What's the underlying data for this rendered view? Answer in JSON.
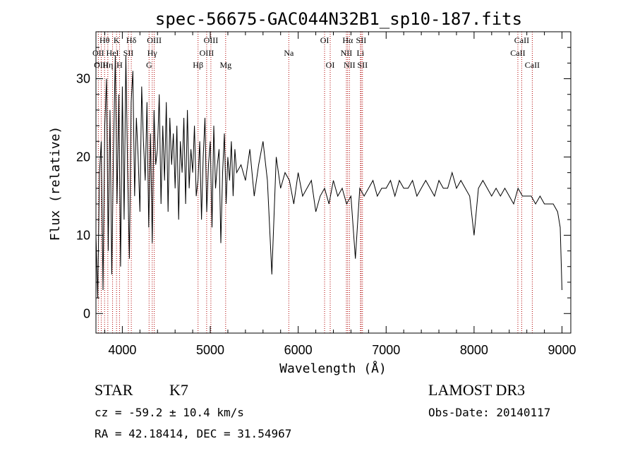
{
  "chart_data": {
    "type": "line",
    "title": "spec-56675-GAC044N32B1_sp10-187.fits",
    "xlabel": "Wavelength (Å)",
    "ylabel": "Flux (relative)",
    "xlim": [
      3700,
      9100
    ],
    "ylim": [
      -2.5,
      36
    ],
    "xticks": [
      4000,
      5000,
      6000,
      7000,
      8000,
      9000
    ],
    "yticks": [
      0,
      10,
      20,
      30
    ],
    "grid": false,
    "line_color": "#000000",
    "marker_color": "#b00000",
    "spectrum": {
      "x": [
        3700,
        3720,
        3740,
        3760,
        3780,
        3800,
        3820,
        3840,
        3860,
        3880,
        3900,
        3920,
        3940,
        3960,
        3980,
        4000,
        4020,
        4040,
        4060,
        4080,
        4100,
        4120,
        4140,
        4160,
        4180,
        4200,
        4220,
        4240,
        4260,
        4280,
        4300,
        4320,
        4340,
        4360,
        4380,
        4400,
        4420,
        4440,
        4460,
        4480,
        4500,
        4520,
        4540,
        4560,
        4580,
        4600,
        4620,
        4640,
        4660,
        4680,
        4700,
        4720,
        4740,
        4760,
        4780,
        4800,
        4820,
        4840,
        4860,
        4880,
        4900,
        4920,
        4940,
        4960,
        4980,
        5000,
        5020,
        5040,
        5060,
        5080,
        5100,
        5120,
        5140,
        5160,
        5180,
        5200,
        5220,
        5240,
        5260,
        5280,
        5300,
        5350,
        5400,
        5450,
        5500,
        5550,
        5600,
        5650,
        5700,
        5750,
        5800,
        5850,
        5900,
        5950,
        6000,
        6050,
        6100,
        6150,
        6200,
        6250,
        6300,
        6350,
        6400,
        6450,
        6500,
        6550,
        6600,
        6650,
        6700,
        6750,
        6800,
        6850,
        6900,
        6950,
        7000,
        7050,
        7100,
        7150,
        7200,
        7250,
        7300,
        7350,
        7400,
        7450,
        7500,
        7550,
        7600,
        7650,
        7700,
        7750,
        7800,
        7850,
        7900,
        7950,
        8000,
        8050,
        8100,
        8150,
        8200,
        8250,
        8300,
        8350,
        8400,
        8450,
        8500,
        8550,
        8600,
        8650,
        8700,
        8750,
        8800,
        8850,
        8900,
        8950,
        8980,
        9000
      ],
      "y": [
        10,
        2,
        18,
        22,
        3,
        24,
        30,
        8,
        26,
        5,
        21,
        33,
        14,
        28,
        6,
        29,
        12,
        33,
        18,
        7,
        27,
        31,
        15,
        25,
        20,
        13,
        29,
        22,
        17,
        27,
        11,
        23,
        9,
        26,
        19,
        21,
        28,
        14,
        24,
        17,
        27,
        13,
        25,
        19,
        23,
        16,
        24,
        12,
        22,
        18,
        25,
        14,
        26,
        16,
        21,
        18,
        24,
        15,
        17,
        22,
        12,
        20,
        25,
        13,
        19,
        22,
        11,
        24,
        16,
        19,
        21,
        9,
        18,
        23,
        14,
        20,
        17,
        22,
        15,
        21,
        18,
        19,
        17,
        21,
        15,
        19,
        22,
        17,
        5,
        20,
        16,
        18,
        17,
        14,
        18,
        15,
        16,
        17,
        13,
        15,
        16,
        14,
        17,
        15,
        16,
        14,
        15,
        7,
        16,
        15,
        16,
        17,
        15,
        16,
        16,
        17,
        15,
        17,
        16,
        16,
        17,
        15,
        16,
        17,
        16,
        15,
        17,
        16,
        16,
        18,
        16,
        17,
        16,
        15,
        10,
        16,
        17,
        16,
        15,
        16,
        15,
        16,
        15,
        14,
        16,
        15,
        15,
        15,
        14,
        15,
        14,
        14,
        14,
        13,
        11,
        3
      ]
    },
    "line_markers": [
      {
        "label": "Hθ",
        "x": 3798,
        "row": 0
      },
      {
        "label": "K",
        "x": 3934,
        "row": 0
      },
      {
        "label": "Hδ",
        "x": 4102,
        "row": 0
      },
      {
        "label": "OIII",
        "x": 4363,
        "row": 0
      },
      {
        "label": "OIII",
        "x": 5007,
        "row": 0
      },
      {
        "label": "OI",
        "x": 6300,
        "row": 0
      },
      {
        "label": "Hα",
        "x": 6563,
        "row": 0
      },
      {
        "label": "SII",
        "x": 6716,
        "row": 0
      },
      {
        "label": "CaII",
        "x": 8542,
        "row": 0
      },
      {
        "label": "OII",
        "x": 3727,
        "row": 1
      },
      {
        "label": "HeI",
        "x": 3889,
        "row": 1
      },
      {
        "label": "SII",
        "x": 4069,
        "row": 1
      },
      {
        "label": "Hγ",
        "x": 4340,
        "row": 1
      },
      {
        "label": "OIII",
        "x": 4959,
        "row": 1
      },
      {
        "label": "Na",
        "x": 5893,
        "row": 1
      },
      {
        "label": "NII",
        "x": 6548,
        "row": 1
      },
      {
        "label": "Li",
        "x": 6708,
        "row": 1
      },
      {
        "label": "CaII",
        "x": 8498,
        "row": 1
      },
      {
        "label": "OIII",
        "x": 3760,
        "row": 2
      },
      {
        "label": "Hη",
        "x": 3835,
        "row": 2
      },
      {
        "label": "H",
        "x": 3968,
        "row": 2
      },
      {
        "label": "G",
        "x": 4304,
        "row": 2
      },
      {
        "label": "Hβ",
        "x": 4861,
        "row": 2
      },
      {
        "label": "Mg",
        "x": 5175,
        "row": 2
      },
      {
        "label": "OI",
        "x": 6364,
        "row": 2
      },
      {
        "label": "NII",
        "x": 6583,
        "row": 2
      },
      {
        "label": "SII",
        "x": 6731,
        "row": 2
      },
      {
        "label": "CaII",
        "x": 8662,
        "row": 2
      }
    ]
  },
  "footer": {
    "object_class": "STAR",
    "subclass": "K7",
    "survey": "LAMOST DR3",
    "redshift": "cz = -59.2 ± 10.4 km/s",
    "obs_date": "Obs-Date: 20140117",
    "coords": "RA =  42.18414, DEC =  31.54967"
  }
}
